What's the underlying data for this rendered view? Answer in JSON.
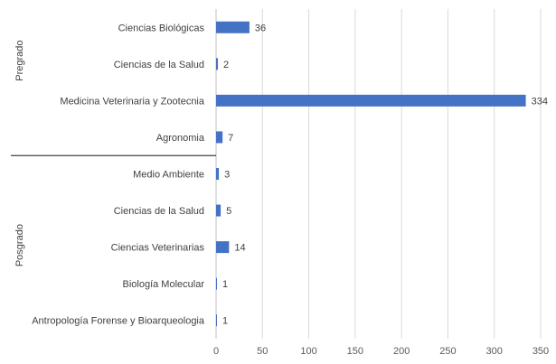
{
  "chart_data": {
    "type": "bar",
    "orientation": "horizontal",
    "categories": [
      "Ciencias Biológicas",
      "Ciencias de la Salud",
      "Medicina Veterinaria y Zootecnia",
      "Agronomia",
      "Medio Ambiente",
      "Ciencias de la Salud",
      "Ciencias Veterinarias",
      "Biología Molecular",
      "Antropología Forense y Bioarqueologia"
    ],
    "groups": [
      {
        "name": "Pregrado",
        "categories": [
          0,
          1,
          2,
          3
        ]
      },
      {
        "name": "Posgrado",
        "categories": [
          4,
          5,
          6,
          7,
          8
        ]
      }
    ],
    "values": [
      36,
      2,
      334,
      7,
      3,
      5,
      14,
      1,
      1
    ],
    "xlim": [
      0,
      350
    ],
    "xticks": [
      0,
      50,
      100,
      150,
      200,
      250,
      300,
      350
    ],
    "grid": true,
    "bar_color": "#4472c4"
  }
}
